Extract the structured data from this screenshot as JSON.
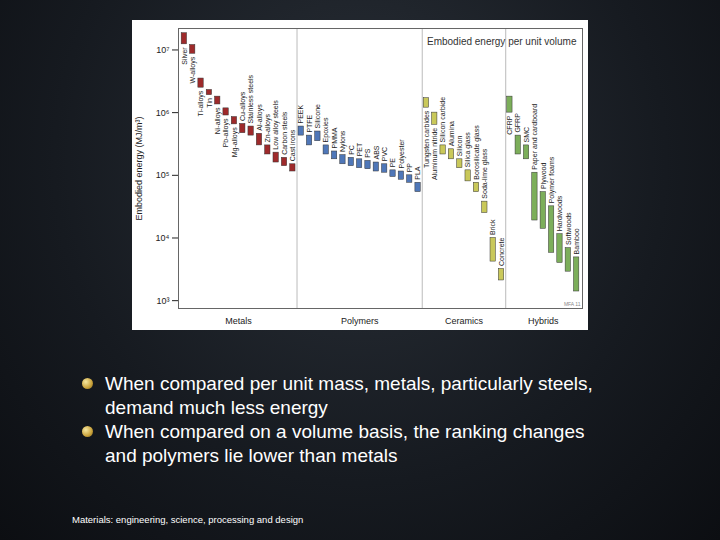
{
  "chart_data": {
    "type": "range_bar",
    "title": "Embodied energy per unit volume",
    "y_label": "Embodied energy (MJ/m³)",
    "credit": "MFA 11",
    "log": "y",
    "grid": false,
    "ylim": [
      750,
      22000000
    ],
    "yticks": [
      {
        "value": 1000,
        "label": "10³"
      },
      {
        "value": 10000,
        "label": "10⁴"
      },
      {
        "value": 100000,
        "label": "10⁵"
      },
      {
        "value": 1000000,
        "label": "10⁶"
      },
      {
        "value": 10000000,
        "label": "10⁷"
      }
    ],
    "series": [
      {
        "name": "Metals",
        "color": "#9e2a2b",
        "categories": [
          "Silver",
          "W-alloys",
          "Ti-alloys",
          "Tin",
          "Ni-alloys",
          "Pb-alloys",
          "Mg-alloys",
          "Cu-alloys",
          "Stainless steels",
          "Al-alloys",
          "Zn-alloys",
          "Low alloy steels",
          "Carbon steels",
          "Cast irons"
        ],
        "values": [
          [
            12300000,
            18500000
          ],
          [
            8700000,
            12000000
          ],
          [
            2500000,
            3500000
          ],
          [
            1900000,
            2300000
          ],
          [
            1350000,
            1800000
          ],
          [
            900000,
            1170000
          ],
          [
            650000,
            850000
          ],
          [
            470000,
            660000
          ],
          [
            430000,
            600000
          ],
          [
            300000,
            460000
          ],
          [
            215000,
            300000
          ],
          [
            160000,
            230000
          ],
          [
            140000,
            190000
          ],
          [
            115000,
            150000
          ]
        ]
      },
      {
        "name": "Polymers",
        "color": "#4f77b8",
        "categories": [
          "PEEK",
          "PTFE",
          "Silicone",
          "Epoxies",
          "PMMA",
          "Nylons",
          "PC",
          "PET",
          "PS",
          "ABS",
          "PVC",
          "PE",
          "Polyester",
          "PP",
          "PLA"
        ],
        "values": [
          [
            430000,
            600000
          ],
          [
            300000,
            430000
          ],
          [
            350000,
            500000
          ],
          [
            215000,
            300000
          ],
          [
            180000,
            240000
          ],
          [
            150000,
            210000
          ],
          [
            140000,
            190000
          ],
          [
            130000,
            180000
          ],
          [
            125000,
            170000
          ],
          [
            115000,
            160000
          ],
          [
            110000,
            150000
          ],
          [
            94000,
            120000
          ],
          [
            85000,
            115000
          ],
          [
            76000,
            100000
          ],
          [
            54000,
            76000
          ]
        ]
      },
      {
        "name": "Ceramics",
        "color": "#c9c85a",
        "categories": [
          "Tungsten carbides",
          "Aluminum nitride",
          "Silicon carbide",
          "Alumina",
          "Silicon",
          "Silica glass",
          "Borosilicate glass",
          "Soda-lime glass",
          "Brick",
          "Concrete"
        ],
        "values": [
          [
            1200000,
            1700000
          ],
          [
            640000,
            1000000
          ],
          [
            215000,
            300000
          ],
          [
            180000,
            260000
          ],
          [
            130000,
            180000
          ],
          [
            80000,
            120000
          ],
          [
            54000,
            76000
          ],
          [
            25000,
            38000
          ],
          [
            4200,
            10000
          ],
          [
            2100,
            3200
          ]
        ]
      },
      {
        "name": "Hybrids",
        "color": "#7cae5a",
        "categories": [
          "CFRP",
          "GFRP",
          "SMC",
          "Paper and cardboard",
          "Plywood",
          "Polymer foams",
          "Hardwoods",
          "Softwoods",
          "Bamboo"
        ],
        "values": [
          [
            1000000,
            1800000
          ],
          [
            215000,
            430000
          ],
          [
            180000,
            300000
          ],
          [
            19000,
            110000
          ],
          [
            14000,
            54000
          ],
          [
            5800,
            32000
          ],
          [
            4000,
            11500
          ],
          [
            2900,
            6900
          ],
          [
            1400,
            4900
          ]
        ]
      }
    ]
  },
  "bullets": [
    "When compared per unit mass, metals, particularly steels, demand much less energy",
    "When compared on a volume basis, the ranking changes and polymers lie lower than metals"
  ],
  "footer": "Materials: engineering, science, processing and design"
}
